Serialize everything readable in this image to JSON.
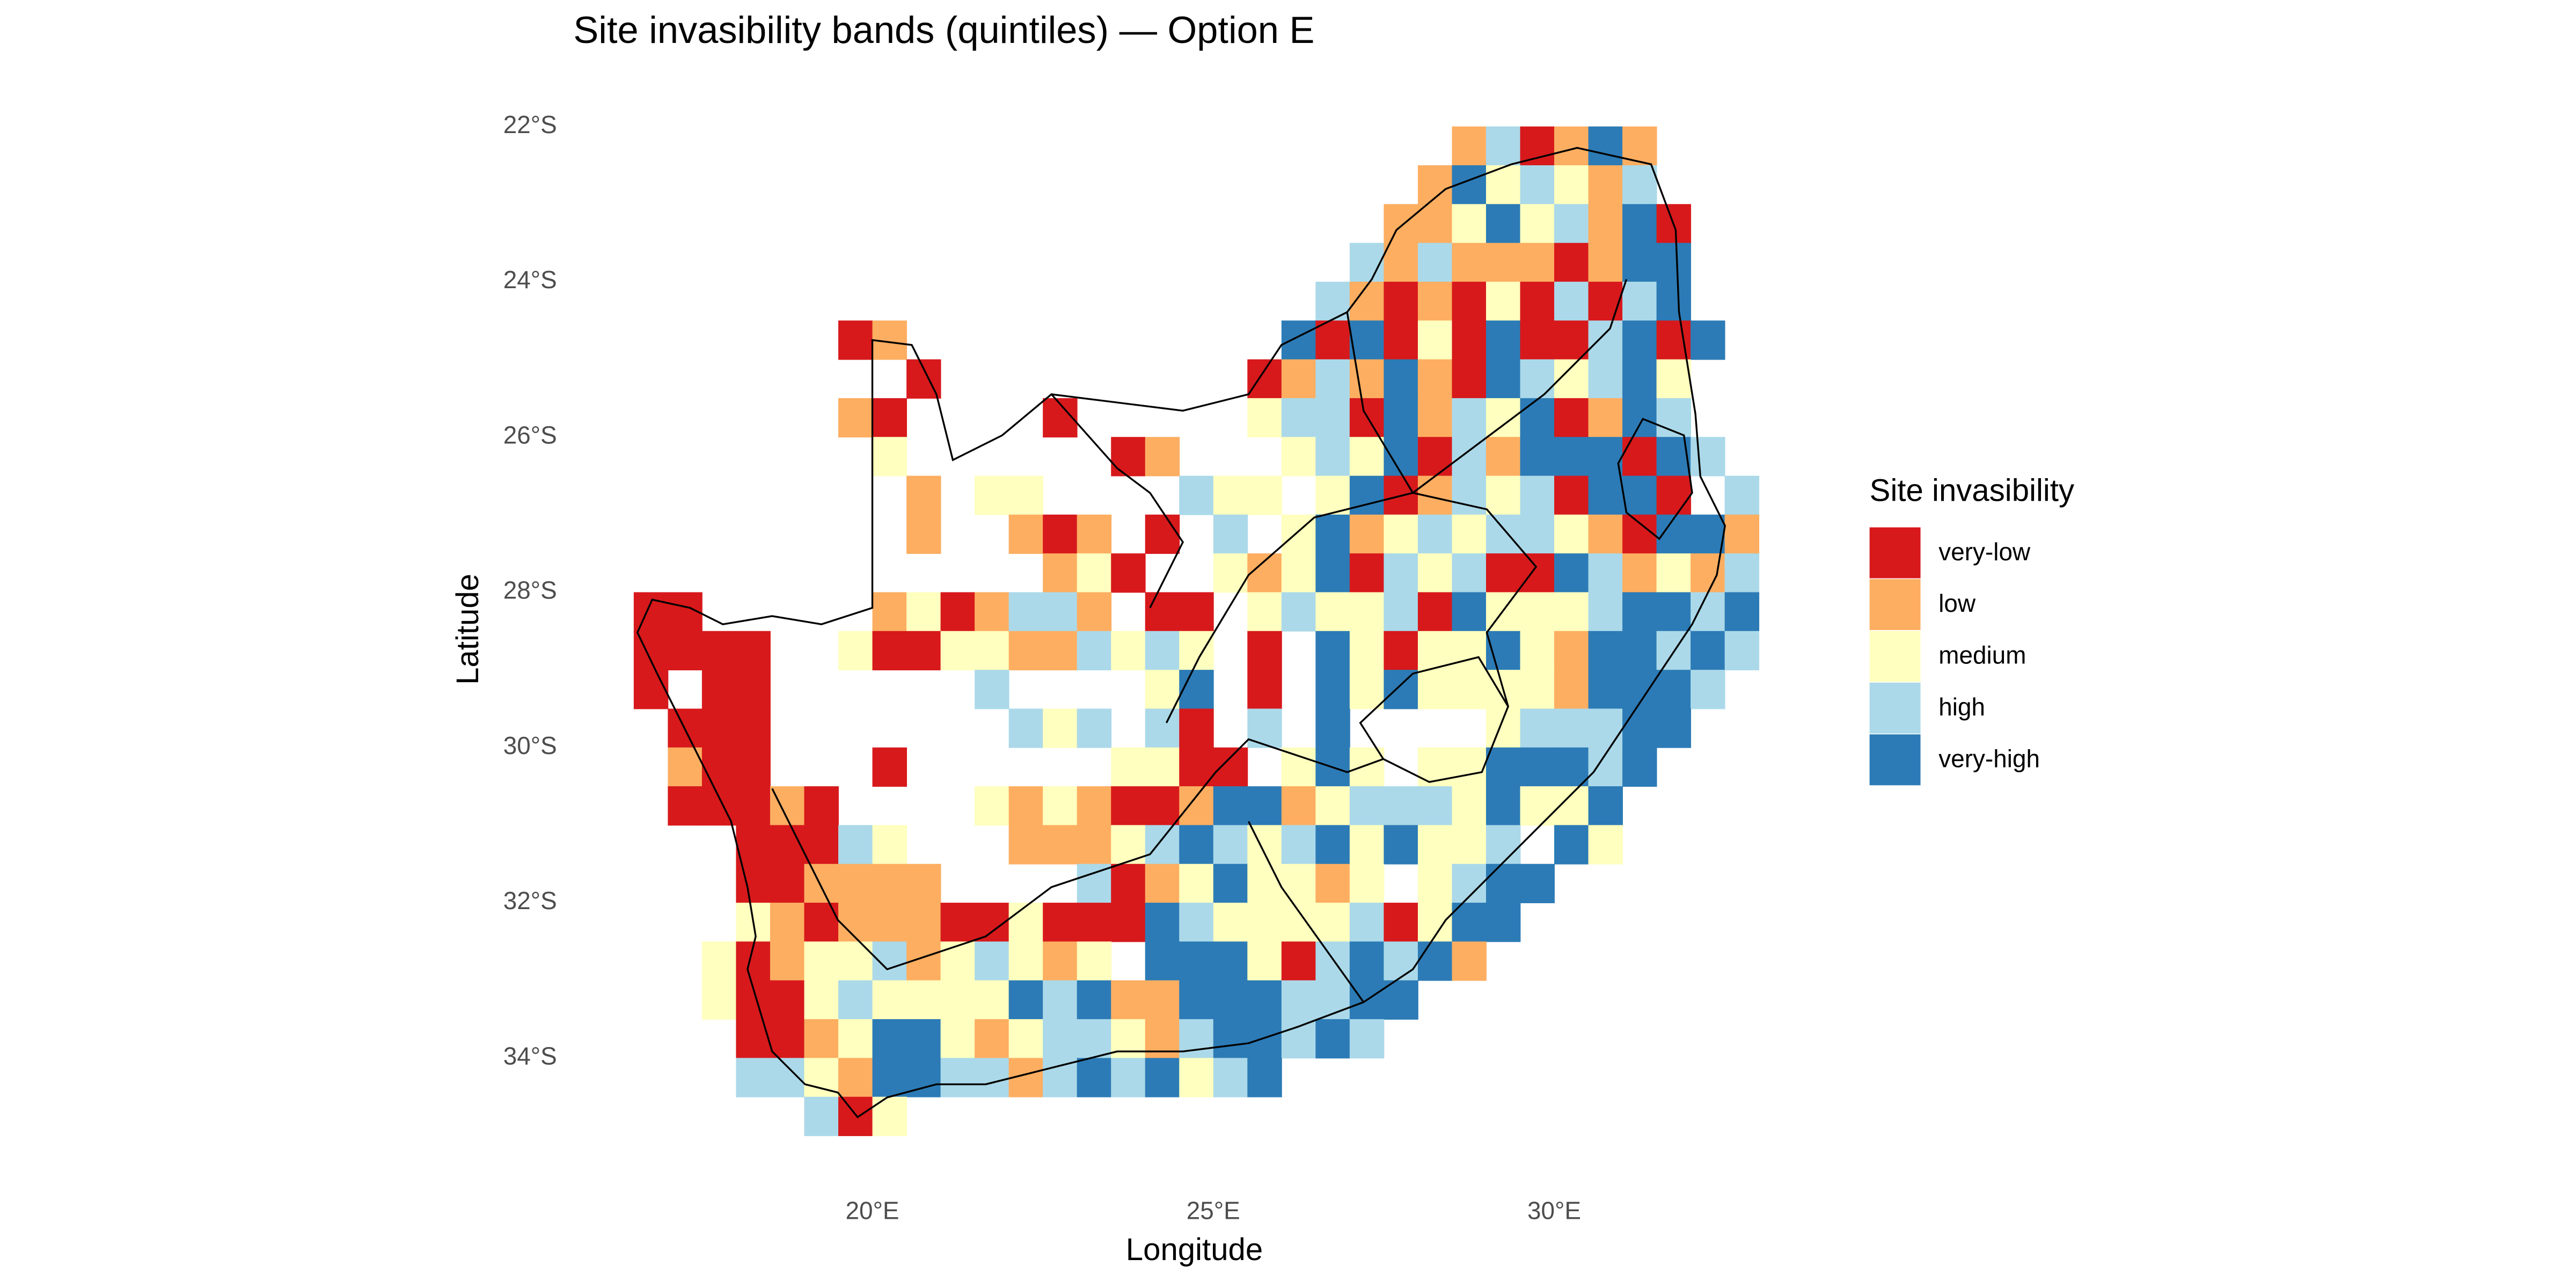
{
  "chart_data": {
    "type": "heatmap",
    "title": "Site invasibility bands (quintiles) — Option E",
    "x_label": "Longitude",
    "y_label": "Latitude",
    "xlim": [
      16.2,
      33.3
    ],
    "ylim": [
      -35.3,
      -21.7
    ],
    "xticks": [
      {
        "value": 20,
        "label": "20°E"
      },
      {
        "value": 25,
        "label": "25°E"
      },
      {
        "value": 30,
        "label": "30°E"
      }
    ],
    "yticks": [
      {
        "value": -22,
        "label": "22°S"
      },
      {
        "value": -24,
        "label": "24°S"
      },
      {
        "value": -26,
        "label": "26°S"
      },
      {
        "value": -28,
        "label": "28°S"
      },
      {
        "value": -30,
        "label": "30°S"
      },
      {
        "value": -32,
        "label": "32°S"
      },
      {
        "value": -34,
        "label": "34°S"
      }
    ],
    "x": [
      16.75,
      17.25,
      17.75,
      18.25,
      18.75,
      19.25,
      19.75,
      20.25,
      20.75,
      21.25,
      21.75,
      22.25,
      22.75,
      23.25,
      23.75,
      24.25,
      24.75,
      25.25,
      25.75,
      26.25,
      26.75,
      27.25,
      27.75,
      28.25,
      28.75,
      29.25,
      29.75,
      30.25,
      30.75,
      31.25,
      31.75,
      32.25,
      32.75
    ],
    "y": [
      -22.25,
      -22.75,
      -23.25,
      -23.75,
      -24.25,
      -24.75,
      -25.25,
      -25.75,
      -26.25,
      -26.75,
      -27.25,
      -27.75,
      -28.25,
      -28.75,
      -29.25,
      -29.75,
      -30.25,
      -30.75,
      -31.25,
      -31.75,
      -32.25,
      -32.75,
      -33.25,
      -33.75,
      -34.25,
      -34.75
    ],
    "values": [
      [
        null,
        null,
        null,
        null,
        null,
        null,
        null,
        null,
        null,
        null,
        null,
        null,
        null,
        null,
        null,
        null,
        null,
        null,
        null,
        null,
        null,
        null,
        null,
        null,
        2,
        4,
        1,
        2,
        5,
        2,
        null,
        null,
        null
      ],
      [
        null,
        null,
        null,
        null,
        null,
        null,
        null,
        null,
        null,
        null,
        null,
        null,
        null,
        null,
        null,
        null,
        null,
        null,
        null,
        null,
        null,
        null,
        null,
        2,
        5,
        3,
        4,
        3,
        2,
        4,
        null,
        null,
        null
      ],
      [
        null,
        null,
        null,
        null,
        null,
        null,
        null,
        null,
        null,
        null,
        null,
        null,
        null,
        null,
        null,
        null,
        null,
        null,
        null,
        null,
        null,
        null,
        2,
        2,
        3,
        5,
        3,
        4,
        2,
        5,
        1,
        null,
        null
      ],
      [
        null,
        null,
        null,
        null,
        null,
        null,
        null,
        null,
        null,
        null,
        null,
        null,
        null,
        null,
        null,
        null,
        null,
        null,
        null,
        null,
        null,
        4,
        2,
        4,
        2,
        2,
        2,
        1,
        2,
        5,
        5,
        null,
        null
      ],
      [
        null,
        null,
        null,
        null,
        null,
        null,
        null,
        null,
        null,
        null,
        null,
        null,
        null,
        null,
        null,
        null,
        null,
        null,
        null,
        null,
        4,
        2,
        1,
        2,
        1,
        3,
        1,
        4,
        1,
        4,
        5,
        null,
        null
      ],
      [
        null,
        null,
        null,
        null,
        null,
        null,
        1,
        2,
        null,
        null,
        null,
        null,
        null,
        null,
        null,
        null,
        null,
        null,
        null,
        5,
        1,
        5,
        1,
        3,
        1,
        5,
        1,
        1,
        4,
        5,
        1,
        5,
        null
      ],
      [
        null,
        null,
        null,
        null,
        null,
        null,
        null,
        null,
        1,
        null,
        null,
        null,
        null,
        null,
        null,
        null,
        null,
        null,
        1,
        2,
        4,
        2,
        5,
        2,
        1,
        5,
        4,
        3,
        4,
        5,
        3,
        null,
        null
      ],
      [
        null,
        null,
        null,
        null,
        null,
        null,
        2,
        1,
        null,
        null,
        null,
        null,
        1,
        null,
        null,
        null,
        null,
        null,
        3,
        4,
        4,
        1,
        5,
        2,
        4,
        3,
        5,
        1,
        2,
        5,
        4,
        null,
        null
      ],
      [
        null,
        null,
        null,
        null,
        null,
        null,
        null,
        3,
        null,
        null,
        null,
        null,
        null,
        null,
        1,
        2,
        null,
        null,
        null,
        3,
        4,
        3,
        5,
        1,
        4,
        2,
        5,
        5,
        5,
        1,
        5,
        4,
        null
      ],
      [
        null,
        null,
        null,
        null,
        null,
        null,
        null,
        null,
        2,
        null,
        3,
        3,
        null,
        null,
        null,
        null,
        4,
        3,
        3,
        null,
        3,
        5,
        1,
        2,
        4,
        3,
        4,
        1,
        5,
        5,
        1,
        null,
        4
      ],
      [
        null,
        null,
        null,
        null,
        null,
        null,
        null,
        null,
        2,
        null,
        null,
        2,
        1,
        2,
        null,
        1,
        null,
        4,
        null,
        3,
        5,
        2,
        3,
        4,
        3,
        4,
        4,
        3,
        2,
        1,
        5,
        5,
        2
      ],
      [
        null,
        null,
        null,
        null,
        null,
        null,
        null,
        null,
        null,
        null,
        null,
        null,
        2,
        3,
        1,
        null,
        null,
        3,
        2,
        3,
        5,
        1,
        4,
        3,
        4,
        1,
        1,
        5,
        4,
        2,
        3,
        2,
        4
      ],
      [
        1,
        1,
        null,
        null,
        null,
        null,
        null,
        2,
        3,
        1,
        2,
        4,
        4,
        2,
        null,
        1,
        1,
        null,
        3,
        4,
        3,
        3,
        4,
        1,
        5,
        3,
        3,
        3,
        4,
        5,
        5,
        4,
        5
      ],
      [
        1,
        1,
        1,
        1,
        null,
        null,
        3,
        1,
        1,
        3,
        3,
        2,
        2,
        4,
        3,
        4,
        3,
        null,
        1,
        null,
        5,
        3,
        1,
        3,
        3,
        5,
        3,
        2,
        5,
        5,
        4,
        5,
        4
      ],
      [
        1,
        null,
        1,
        1,
        null,
        null,
        null,
        null,
        null,
        null,
        4,
        null,
        null,
        null,
        null,
        3,
        5,
        null,
        1,
        null,
        5,
        3,
        5,
        3,
        3,
        3,
        3,
        2,
        5,
        5,
        5,
        4,
        null
      ],
      [
        null,
        1,
        1,
        1,
        null,
        null,
        null,
        null,
        null,
        null,
        null,
        4,
        3,
        4,
        null,
        4,
        1,
        null,
        4,
        null,
        5,
        null,
        null,
        null,
        null,
        3,
        4,
        4,
        4,
        5,
        5,
        null,
        null
      ],
      [
        null,
        2,
        1,
        1,
        null,
        null,
        null,
        1,
        null,
        null,
        null,
        null,
        null,
        null,
        3,
        3,
        1,
        1,
        null,
        3,
        5,
        3,
        null,
        3,
        3,
        5,
        5,
        5,
        4,
        5,
        null,
        null,
        null
      ],
      [
        null,
        1,
        1,
        1,
        2,
        1,
        null,
        null,
        null,
        null,
        3,
        2,
        3,
        2,
        1,
        1,
        2,
        5,
        5,
        2,
        3,
        4,
        4,
        4,
        3,
        5,
        3,
        3,
        5,
        null,
        null,
        null,
        null
      ],
      [
        null,
        null,
        null,
        1,
        1,
        1,
        4,
        3,
        null,
        null,
        null,
        2,
        2,
        2,
        3,
        4,
        5,
        4,
        3,
        4,
        5,
        3,
        5,
        3,
        3,
        4,
        null,
        5,
        3,
        null,
        null,
        null,
        null
      ],
      [
        null,
        null,
        null,
        1,
        1,
        2,
        2,
        2,
        2,
        null,
        null,
        null,
        null,
        4,
        1,
        2,
        3,
        5,
        3,
        3,
        2,
        3,
        null,
        3,
        4,
        5,
        5,
        null,
        null,
        null,
        null,
        null,
        null
      ],
      [
        null,
        null,
        null,
        3,
        2,
        1,
        2,
        2,
        2,
        1,
        1,
        3,
        1,
        1,
        1,
        5,
        4,
        3,
        3,
        3,
        3,
        4,
        1,
        3,
        5,
        5,
        null,
        null,
        null,
        null,
        null,
        null,
        null
      ],
      [
        null,
        null,
        3,
        1,
        2,
        3,
        3,
        4,
        2,
        3,
        4,
        3,
        2,
        3,
        null,
        5,
        5,
        5,
        3,
        1,
        4,
        5,
        4,
        5,
        2,
        null,
        null,
        null,
        null,
        null,
        null,
        null,
        null
      ],
      [
        null,
        null,
        3,
        1,
        1,
        3,
        4,
        3,
        3,
        3,
        3,
        5,
        4,
        5,
        2,
        2,
        5,
        5,
        5,
        4,
        4,
        5,
        5,
        null,
        null,
        null,
        null,
        null,
        null,
        null,
        null,
        null,
        null
      ],
      [
        null,
        null,
        null,
        1,
        1,
        2,
        3,
        5,
        5,
        3,
        2,
        3,
        4,
        4,
        3,
        2,
        4,
        5,
        5,
        4,
        5,
        4,
        null,
        null,
        null,
        null,
        null,
        null,
        null,
        null,
        null,
        null,
        null
      ],
      [
        null,
        null,
        null,
        4,
        4,
        3,
        2,
        5,
        5,
        4,
        4,
        2,
        4,
        5,
        4,
        5,
        3,
        4,
        5,
        null,
        null,
        null,
        null,
        null,
        null,
        null,
        null,
        null,
        null,
        null,
        null,
        null,
        null
      ],
      [
        null,
        null,
        null,
        null,
        null,
        4,
        1,
        3,
        null,
        null,
        null,
        null,
        null,
        null,
        null,
        null,
        null,
        null,
        null,
        null,
        null,
        null,
        null,
        null,
        null,
        null,
        null,
        null,
        null,
        null,
        null,
        null,
        null
      ]
    ],
    "legend": {
      "title": "Site invasibility",
      "position": "right",
      "labels": [
        "very-low",
        "low",
        "medium",
        "high",
        "very-high"
      ],
      "colors": [
        "#d7191c",
        "#fdae61",
        "#ffffbf",
        "#abd9e9",
        "#2c7bb6"
      ]
    }
  }
}
